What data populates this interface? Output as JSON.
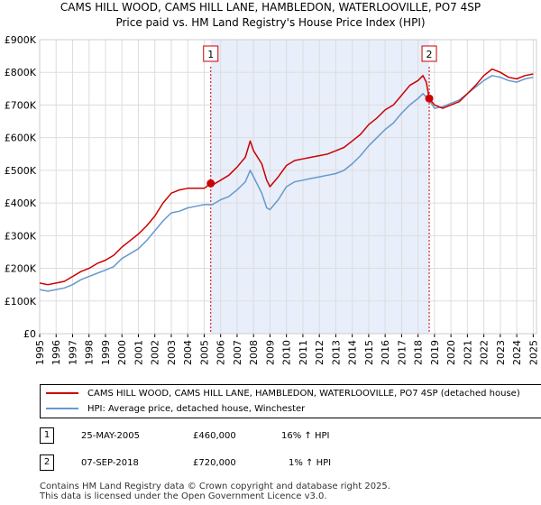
{
  "chart_data": {
    "type": "line",
    "title": "CAMS HILL WOOD, CAMS HILL LANE, HAMBLEDON, WATERLOOVILLE, PO7 4SP",
    "subtitle": "Price paid vs. HM Land Registry's House Price Index (HPI)",
    "xlim": [
      1995,
      2025.2
    ],
    "ylim": [
      0,
      900000
    ],
    "x_ticks": [
      1995,
      1996,
      1997,
      1998,
      1999,
      2000,
      2001,
      2002,
      2003,
      2004,
      2005,
      2006,
      2007,
      2008,
      2009,
      2010,
      2011,
      2012,
      2013,
      2014,
      2015,
      2016,
      2017,
      2018,
      2019,
      2020,
      2021,
      2022,
      2023,
      2024,
      2025
    ],
    "y_ticks": [
      {
        "value": 0,
        "label": "£0"
      },
      {
        "value": 100000,
        "label": "£100K"
      },
      {
        "value": 200000,
        "label": "£200K"
      },
      {
        "value": 300000,
        "label": "£300K"
      },
      {
        "value": 400000,
        "label": "£400K"
      },
      {
        "value": 500000,
        "label": "£500K"
      },
      {
        "value": 600000,
        "label": "£600K"
      },
      {
        "value": 700000,
        "label": "£700K"
      },
      {
        "value": 800000,
        "label": "£800K"
      },
      {
        "value": 900000,
        "label": "£900K"
      }
    ],
    "highlight_range": [
      2005.4,
      2018.68
    ],
    "series": [
      {
        "name": "CAMS HILL WOOD, CAMS HILL LANE, HAMBLEDON, WATERLOOVILLE, PO7 4SP (detached house)",
        "color": "#cc0000",
        "points": [
          [
            1995,
            155000
          ],
          [
            1995.5,
            150000
          ],
          [
            1996,
            155000
          ],
          [
            1996.5,
            160000
          ],
          [
            1997,
            175000
          ],
          [
            1997.5,
            190000
          ],
          [
            1998,
            200000
          ],
          [
            1998.5,
            215000
          ],
          [
            1999,
            225000
          ],
          [
            1999.5,
            240000
          ],
          [
            2000,
            265000
          ],
          [
            2000.5,
            285000
          ],
          [
            2001,
            305000
          ],
          [
            2001.5,
            330000
          ],
          [
            2002,
            360000
          ],
          [
            2002.5,
            400000
          ],
          [
            2003,
            430000
          ],
          [
            2003.5,
            440000
          ],
          [
            2004,
            445000
          ],
          [
            2004.5,
            445000
          ],
          [
            2005,
            445000
          ],
          [
            2005.4,
            460000
          ],
          [
            2005.5,
            455000
          ],
          [
            2006,
            470000
          ],
          [
            2006.5,
            485000
          ],
          [
            2007,
            510000
          ],
          [
            2007.5,
            540000
          ],
          [
            2007.8,
            590000
          ],
          [
            2008,
            560000
          ],
          [
            2008.5,
            520000
          ],
          [
            2008.8,
            470000
          ],
          [
            2009,
            450000
          ],
          [
            2009.5,
            480000
          ],
          [
            2010,
            515000
          ],
          [
            2010.5,
            530000
          ],
          [
            2011,
            535000
          ],
          [
            2011.5,
            540000
          ],
          [
            2012,
            545000
          ],
          [
            2012.5,
            550000
          ],
          [
            2013,
            560000
          ],
          [
            2013.5,
            570000
          ],
          [
            2014,
            590000
          ],
          [
            2014.5,
            610000
          ],
          [
            2015,
            640000
          ],
          [
            2015.5,
            660000
          ],
          [
            2016,
            685000
          ],
          [
            2016.5,
            700000
          ],
          [
            2017,
            730000
          ],
          [
            2017.5,
            760000
          ],
          [
            2018,
            775000
          ],
          [
            2018.3,
            790000
          ],
          [
            2018.5,
            770000
          ],
          [
            2018.68,
            720000
          ],
          [
            2019,
            700000
          ],
          [
            2019.5,
            690000
          ],
          [
            2020,
            700000
          ],
          [
            2020.5,
            710000
          ],
          [
            2021,
            735000
          ],
          [
            2021.5,
            760000
          ],
          [
            2022,
            790000
          ],
          [
            2022.5,
            810000
          ],
          [
            2023,
            800000
          ],
          [
            2023.5,
            785000
          ],
          [
            2024,
            780000
          ],
          [
            2024.5,
            790000
          ],
          [
            2025,
            795000
          ]
        ]
      },
      {
        "name": "HPI: Average price, detached house, Winchester",
        "color": "#6699cc",
        "points": [
          [
            1995,
            135000
          ],
          [
            1995.5,
            130000
          ],
          [
            1996,
            135000
          ],
          [
            1996.5,
            140000
          ],
          [
            1997,
            150000
          ],
          [
            1997.5,
            165000
          ],
          [
            1998,
            175000
          ],
          [
            1998.5,
            185000
          ],
          [
            1999,
            195000
          ],
          [
            1999.5,
            205000
          ],
          [
            2000,
            230000
          ],
          [
            2000.5,
            245000
          ],
          [
            2001,
            260000
          ],
          [
            2001.5,
            285000
          ],
          [
            2002,
            315000
          ],
          [
            2002.5,
            345000
          ],
          [
            2003,
            370000
          ],
          [
            2003.5,
            375000
          ],
          [
            2004,
            385000
          ],
          [
            2004.5,
            390000
          ],
          [
            2005,
            395000
          ],
          [
            2005.5,
            395000
          ],
          [
            2006,
            410000
          ],
          [
            2006.5,
            420000
          ],
          [
            2007,
            440000
          ],
          [
            2007.5,
            465000
          ],
          [
            2007.8,
            500000
          ],
          [
            2008,
            480000
          ],
          [
            2008.5,
            430000
          ],
          [
            2008.8,
            385000
          ],
          [
            2009,
            380000
          ],
          [
            2009.5,
            410000
          ],
          [
            2010,
            450000
          ],
          [
            2010.5,
            465000
          ],
          [
            2011,
            470000
          ],
          [
            2011.5,
            475000
          ],
          [
            2012,
            480000
          ],
          [
            2012.5,
            485000
          ],
          [
            2013,
            490000
          ],
          [
            2013.5,
            500000
          ],
          [
            2014,
            520000
          ],
          [
            2014.5,
            545000
          ],
          [
            2015,
            575000
          ],
          [
            2015.5,
            600000
          ],
          [
            2016,
            625000
          ],
          [
            2016.5,
            645000
          ],
          [
            2017,
            675000
          ],
          [
            2017.5,
            700000
          ],
          [
            2018,
            720000
          ],
          [
            2018.3,
            735000
          ],
          [
            2018.68,
            715000
          ],
          [
            2019,
            690000
          ],
          [
            2019.5,
            695000
          ],
          [
            2020,
            705000
          ],
          [
            2020.5,
            715000
          ],
          [
            2021,
            735000
          ],
          [
            2021.5,
            755000
          ],
          [
            2022,
            775000
          ],
          [
            2022.5,
            790000
          ],
          [
            2023,
            785000
          ],
          [
            2023.5,
            775000
          ],
          [
            2024,
            770000
          ],
          [
            2024.5,
            780000
          ],
          [
            2025,
            785000
          ]
        ]
      }
    ],
    "sales": [
      {
        "id": "1",
        "x": 2005.4,
        "price": 460000
      },
      {
        "id": "2",
        "x": 2018.68,
        "price": 720000
      }
    ]
  },
  "table": [
    {
      "id": "1",
      "date": "25-MAY-2005",
      "price": "£460,000",
      "delta": "16% ↑ HPI"
    },
    {
      "id": "2",
      "date": "07-SEP-2018",
      "price": "£720,000",
      "delta": "1% ↑ HPI"
    }
  ],
  "footer": {
    "line1": "Contains HM Land Registry data © Crown copyright and database right 2025.",
    "line2": "This data is licensed under the Open Government Licence v3.0."
  }
}
